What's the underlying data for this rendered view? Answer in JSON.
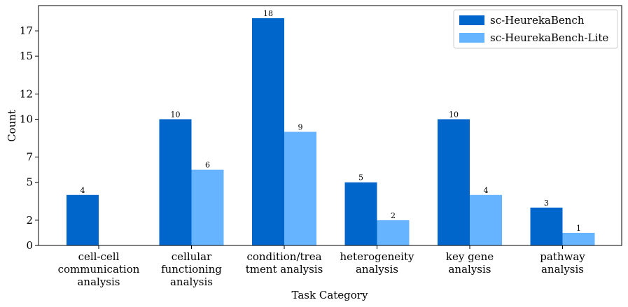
{
  "chart_data": {
    "type": "bar",
    "title": "",
    "xlabel": "Task Category",
    "ylabel": "Count",
    "ylim": [
      0,
      19
    ],
    "yticks": [
      0,
      2,
      5,
      7,
      10,
      12,
      15,
      17
    ],
    "categories": [
      [
        "cell-cell",
        "communication",
        "analysis"
      ],
      [
        "cellular",
        "functioning",
        "analysis"
      ],
      [
        "condition/trea",
        "tment analysis"
      ],
      [
        "heterogeneity",
        "analysis"
      ],
      [
        "key gene",
        "analysis"
      ],
      [
        "pathway",
        "analysis"
      ]
    ],
    "series": [
      {
        "name": "sc-HeurekaBench",
        "color": "#0066cc",
        "values": [
          4,
          10,
          18,
          5,
          10,
          3
        ]
      },
      {
        "name": "sc-HeurekaBench-Lite",
        "color": "#66b3ff",
        "values": [
          0,
          6,
          9,
          2,
          4,
          1
        ]
      }
    ],
    "grid": false,
    "legend": "top-right"
  }
}
